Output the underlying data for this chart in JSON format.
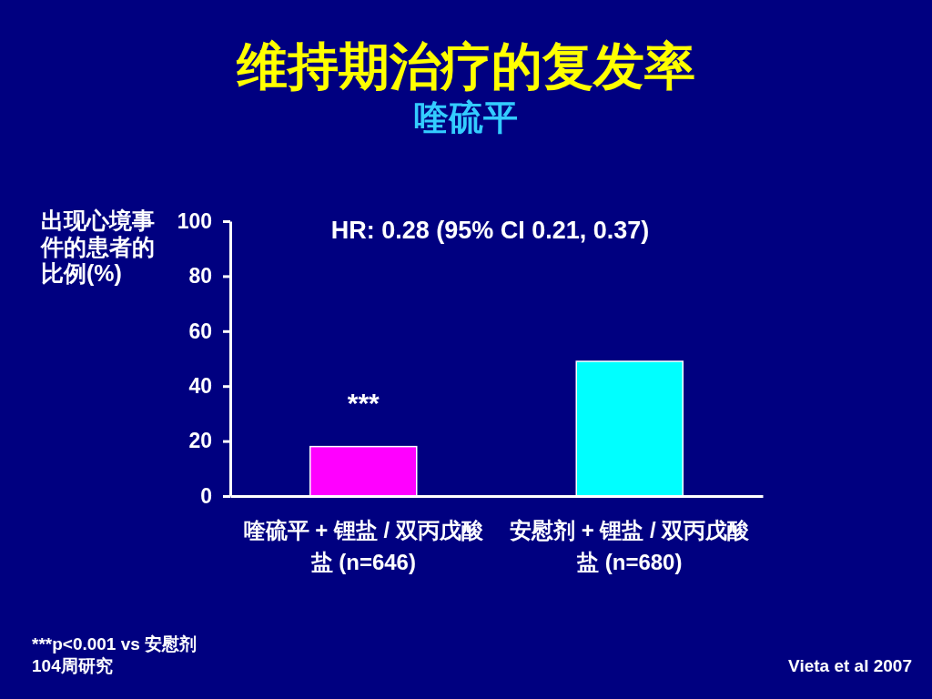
{
  "chart_data": {
    "type": "bar",
    "title": "维持期治疗的复发率",
    "subtitle": "喹硫平",
    "ylabel": "出现心境事件的患者的比例(%)",
    "categories": [
      "喹硫平 + 锂盐 / 双丙戊酸盐 (n=646)",
      "安慰剂 + 锂盐 / 双丙戊酸盐 (n=680)"
    ],
    "values": [
      18,
      49
    ],
    "colors": [
      "#ff00ff",
      "#00ffff"
    ],
    "ylim": [
      0,
      100
    ],
    "yticks": [
      0,
      20,
      40,
      60,
      80,
      100
    ],
    "annotations": [
      "HR: 0.28 (95% CI 0.21, 0.37)",
      "***",
      "***p<0.001 vs 安慰剂",
      "104周研究",
      "Vieta et al 2007"
    ]
  }
}
